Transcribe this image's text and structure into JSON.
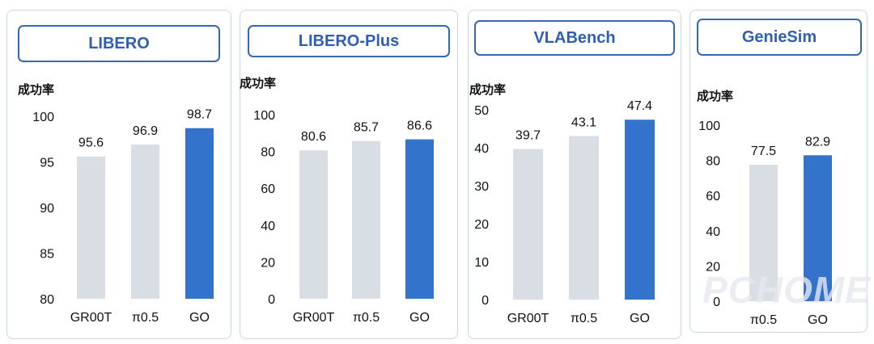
{
  "colors": {
    "bar_default": "#d9dde4",
    "bar_highlight": "#3373cc",
    "title_border": "#3566b8",
    "title_text": "#2f5fb3",
    "card_border": "#c9d6ea"
  },
  "watermark": "PCHOME",
  "chart_data": [
    {
      "type": "bar",
      "title": "LIBERO",
      "ylabel": "成功率",
      "categories": [
        "GR00T",
        "π0.5",
        "GO"
      ],
      "values": [
        95.6,
        96.9,
        98.7
      ],
      "value_labels": [
        "95.6",
        "96.9",
        "98.7"
      ],
      "highlight": "GO",
      "ylim": [
        80,
        100
      ],
      "yticks": [
        80,
        85,
        90,
        95,
        100
      ]
    },
    {
      "type": "bar",
      "title": "LIBERO-Plus",
      "ylabel": "成功率",
      "categories": [
        "GR00T",
        "π0.5",
        "GO"
      ],
      "values": [
        80.6,
        85.7,
        86.6
      ],
      "value_labels": [
        "80.6",
        "85.7",
        "86.6"
      ],
      "highlight": "GO",
      "ylim": [
        0,
        100
      ],
      "yticks": [
        0,
        20,
        40,
        60,
        80,
        100
      ]
    },
    {
      "type": "bar",
      "title": "VLABench",
      "ylabel": "成功率",
      "categories": [
        "GR00T",
        "π0.5",
        "GO"
      ],
      "values": [
        39.7,
        43.1,
        47.4
      ],
      "value_labels": [
        "39.7",
        "43.1",
        "47.4"
      ],
      "highlight": "GO",
      "ylim": [
        0,
        50
      ],
      "yticks": [
        0,
        10,
        20,
        30,
        40,
        50
      ]
    },
    {
      "type": "bar",
      "title": "GenieSim",
      "ylabel": "成功率",
      "categories": [
        "π0.5",
        "GO"
      ],
      "values": [
        77.5,
        82.9
      ],
      "value_labels": [
        "77.5",
        "82.9"
      ],
      "highlight": "GO",
      "ylim": [
        0,
        100
      ],
      "yticks": [
        0,
        20,
        40,
        60,
        80,
        100
      ]
    }
  ]
}
